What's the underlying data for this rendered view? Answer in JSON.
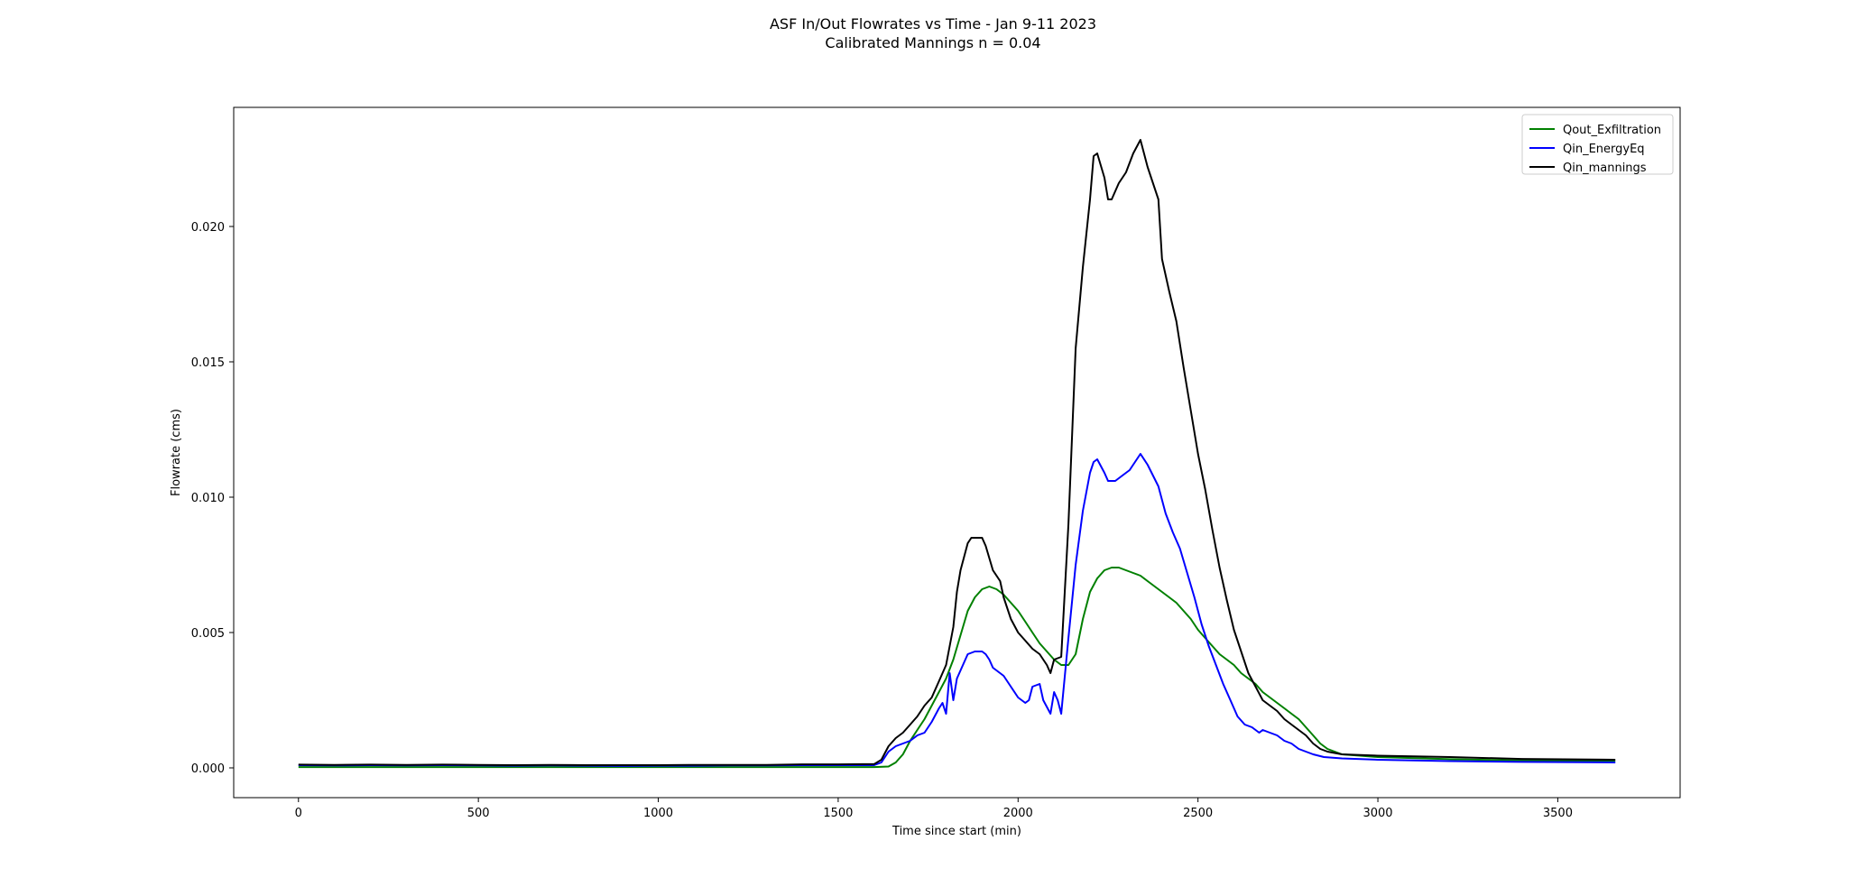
{
  "chart_data": {
    "type": "line",
    "title": "ASF In/Out Flowrates vs Time - Jan 9-11 2023",
    "subtitle": "Calibrated Mannings n = 0.04",
    "xlabel": "Time since start (min)",
    "ylabel": "Flowrate (cms)",
    "xlim": [
      -180,
      3840
    ],
    "ylim": [
      -0.0011,
      0.0244
    ],
    "xticks": [
      0,
      500,
      1000,
      1500,
      2000,
      2500,
      3000,
      3500
    ],
    "xtick_labels": [
      "0",
      "500",
      "1000",
      "1500",
      "2000",
      "2500",
      "3000",
      "3500"
    ],
    "yticks": [
      0.0,
      0.005,
      0.01,
      0.015,
      0.02
    ],
    "ytick_labels": [
      "0.000",
      "0.005",
      "0.010",
      "0.015",
      "0.020"
    ],
    "grid": false,
    "legend_position": "top-right",
    "series": [
      {
        "name": "Qout_Exfiltration",
        "color": "#008000",
        "points": [
          [
            0,
            3e-05
          ],
          [
            500,
            3e-05
          ],
          [
            1000,
            3e-05
          ],
          [
            1500,
            3e-05
          ],
          [
            1600,
            3e-05
          ],
          [
            1640,
            5e-05
          ],
          [
            1660,
            0.0002
          ],
          [
            1680,
            0.0005
          ],
          [
            1700,
            0.001
          ],
          [
            1720,
            0.0014
          ],
          [
            1740,
            0.0018
          ],
          [
            1760,
            0.0023
          ],
          [
            1780,
            0.0028
          ],
          [
            1800,
            0.0033
          ],
          [
            1820,
            0.004
          ],
          [
            1840,
            0.0049
          ],
          [
            1860,
            0.0058
          ],
          [
            1880,
            0.0063
          ],
          [
            1900,
            0.0066
          ],
          [
            1920,
            0.0067
          ],
          [
            1940,
            0.0066
          ],
          [
            1960,
            0.0064
          ],
          [
            1980,
            0.0061
          ],
          [
            2000,
            0.0058
          ],
          [
            2020,
            0.0054
          ],
          [
            2040,
            0.005
          ],
          [
            2060,
            0.0046
          ],
          [
            2080,
            0.0043
          ],
          [
            2100,
            0.004
          ],
          [
            2120,
            0.0038
          ],
          [
            2140,
            0.0038
          ],
          [
            2160,
            0.0042
          ],
          [
            2180,
            0.0055
          ],
          [
            2200,
            0.0065
          ],
          [
            2220,
            0.007
          ],
          [
            2240,
            0.0073
          ],
          [
            2260,
            0.0074
          ],
          [
            2280,
            0.0074
          ],
          [
            2300,
            0.0073
          ],
          [
            2320,
            0.0072
          ],
          [
            2340,
            0.0071
          ],
          [
            2360,
            0.0069
          ],
          [
            2380,
            0.0067
          ],
          [
            2400,
            0.0065
          ],
          [
            2420,
            0.0063
          ],
          [
            2440,
            0.0061
          ],
          [
            2460,
            0.0058
          ],
          [
            2480,
            0.0055
          ],
          [
            2500,
            0.0051
          ],
          [
            2520,
            0.0048
          ],
          [
            2540,
            0.0045
          ],
          [
            2560,
            0.0042
          ],
          [
            2580,
            0.004
          ],
          [
            2600,
            0.0038
          ],
          [
            2620,
            0.0035
          ],
          [
            2640,
            0.0033
          ],
          [
            2660,
            0.0031
          ],
          [
            2680,
            0.0028
          ],
          [
            2700,
            0.0026
          ],
          [
            2720,
            0.0024
          ],
          [
            2740,
            0.0022
          ],
          [
            2760,
            0.002
          ],
          [
            2780,
            0.0018
          ],
          [
            2800,
            0.0015
          ],
          [
            2820,
            0.0012
          ],
          [
            2840,
            0.0009
          ],
          [
            2860,
            0.0007
          ],
          [
            2880,
            0.0006
          ],
          [
            2900,
            0.0005
          ],
          [
            2950,
            0.00045
          ],
          [
            3000,
            0.0004
          ],
          [
            3200,
            0.00032
          ],
          [
            3400,
            0.00027
          ],
          [
            3660,
            0.00025
          ]
        ]
      },
      {
        "name": "Qin_EnergyEq",
        "color": "#0000ff",
        "points": [
          [
            0,
            0.0001
          ],
          [
            100,
            9e-05
          ],
          [
            200,
            0.0001
          ],
          [
            300,
            9e-05
          ],
          [
            400,
            0.0001
          ],
          [
            500,
            9e-05
          ],
          [
            600,
            8e-05
          ],
          [
            700,
            9e-05
          ],
          [
            800,
            8e-05
          ],
          [
            900,
            7e-05
          ],
          [
            1000,
            8e-05
          ],
          [
            1100,
            8e-05
          ],
          [
            1200,
            9e-05
          ],
          [
            1300,
            9e-05
          ],
          [
            1400,
            0.0001
          ],
          [
            1500,
            0.0001
          ],
          [
            1600,
            0.0001
          ],
          [
            1620,
            0.0002
          ],
          [
            1640,
            0.0006
          ],
          [
            1660,
            0.0008
          ],
          [
            1680,
            0.0009
          ],
          [
            1700,
            0.001
          ],
          [
            1720,
            0.0012
          ],
          [
            1740,
            0.0013
          ],
          [
            1760,
            0.0017
          ],
          [
            1780,
            0.0022
          ],
          [
            1790,
            0.0024
          ],
          [
            1800,
            0.002
          ],
          [
            1810,
            0.0035
          ],
          [
            1820,
            0.0025
          ],
          [
            1830,
            0.0033
          ],
          [
            1840,
            0.0036
          ],
          [
            1860,
            0.0042
          ],
          [
            1880,
            0.0043
          ],
          [
            1900,
            0.0043
          ],
          [
            1910,
            0.0042
          ],
          [
            1920,
            0.004
          ],
          [
            1930,
            0.0037
          ],
          [
            1940,
            0.0036
          ],
          [
            1960,
            0.0034
          ],
          [
            1980,
            0.003
          ],
          [
            2000,
            0.0026
          ],
          [
            2020,
            0.0024
          ],
          [
            2030,
            0.0025
          ],
          [
            2040,
            0.003
          ],
          [
            2060,
            0.0031
          ],
          [
            2070,
            0.0025
          ],
          [
            2090,
            0.002
          ],
          [
            2100,
            0.0028
          ],
          [
            2110,
            0.0025
          ],
          [
            2120,
            0.002
          ],
          [
            2140,
            0.0048
          ],
          [
            2160,
            0.0075
          ],
          [
            2180,
            0.0095
          ],
          [
            2200,
            0.0109
          ],
          [
            2210,
            0.0113
          ],
          [
            2220,
            0.0114
          ],
          [
            2240,
            0.0109
          ],
          [
            2250,
            0.0106
          ],
          [
            2270,
            0.0106
          ],
          [
            2290,
            0.0108
          ],
          [
            2310,
            0.011
          ],
          [
            2330,
            0.0114
          ],
          [
            2340,
            0.0116
          ],
          [
            2360,
            0.0112
          ],
          [
            2390,
            0.0104
          ],
          [
            2410,
            0.0094
          ],
          [
            2430,
            0.0087
          ],
          [
            2450,
            0.0081
          ],
          [
            2470,
            0.0072
          ],
          [
            2490,
            0.0063
          ],
          [
            2510,
            0.0053
          ],
          [
            2530,
            0.0045
          ],
          [
            2550,
            0.0038
          ],
          [
            2570,
            0.0031
          ],
          [
            2590,
            0.0025
          ],
          [
            2610,
            0.0019
          ],
          [
            2630,
            0.0016
          ],
          [
            2650,
            0.0015
          ],
          [
            2670,
            0.0013
          ],
          [
            2680,
            0.0014
          ],
          [
            2700,
            0.0013
          ],
          [
            2720,
            0.0012
          ],
          [
            2740,
            0.001
          ],
          [
            2760,
            0.0009
          ],
          [
            2780,
            0.0007
          ],
          [
            2800,
            0.0006
          ],
          [
            2820,
            0.0005
          ],
          [
            2850,
            0.0004
          ],
          [
            2900,
            0.00035
          ],
          [
            3000,
            0.0003
          ],
          [
            3200,
            0.00025
          ],
          [
            3400,
            0.00022
          ],
          [
            3660,
            0.0002
          ]
        ]
      },
      {
        "name": "Qin_mannings",
        "color": "#000000",
        "points": [
          [
            0,
            0.00012
          ],
          [
            100,
            0.00011
          ],
          [
            200,
            0.00012
          ],
          [
            300,
            0.00011
          ],
          [
            400,
            0.00012
          ],
          [
            500,
            0.00011
          ],
          [
            600,
            0.0001
          ],
          [
            700,
            0.00011
          ],
          [
            800,
            0.0001
          ],
          [
            900,
            0.0001
          ],
          [
            1000,
            0.0001
          ],
          [
            1100,
            0.00011
          ],
          [
            1200,
            0.00011
          ],
          [
            1300,
            0.00011
          ],
          [
            1400,
            0.00013
          ],
          [
            1500,
            0.00013
          ],
          [
            1600,
            0.00014
          ],
          [
            1620,
            0.0003
          ],
          [
            1640,
            0.0008
          ],
          [
            1660,
            0.0011
          ],
          [
            1680,
            0.0013
          ],
          [
            1700,
            0.0016
          ],
          [
            1720,
            0.0019
          ],
          [
            1740,
            0.0023
          ],
          [
            1760,
            0.0026
          ],
          [
            1780,
            0.0032
          ],
          [
            1800,
            0.0038
          ],
          [
            1810,
            0.0045
          ],
          [
            1820,
            0.0052
          ],
          [
            1830,
            0.0065
          ],
          [
            1840,
            0.0073
          ],
          [
            1860,
            0.0083
          ],
          [
            1870,
            0.0085
          ],
          [
            1890,
            0.0085
          ],
          [
            1900,
            0.0085
          ],
          [
            1910,
            0.0082
          ],
          [
            1930,
            0.0073
          ],
          [
            1950,
            0.0069
          ],
          [
            1960,
            0.0063
          ],
          [
            1980,
            0.0055
          ],
          [
            2000,
            0.005
          ],
          [
            2020,
            0.0047
          ],
          [
            2040,
            0.0044
          ],
          [
            2060,
            0.0042
          ],
          [
            2080,
            0.0038
          ],
          [
            2090,
            0.0035
          ],
          [
            2100,
            0.004
          ],
          [
            2120,
            0.0041
          ],
          [
            2140,
            0.009
          ],
          [
            2160,
            0.0155
          ],
          [
            2180,
            0.0185
          ],
          [
            2200,
            0.021
          ],
          [
            2210,
            0.0226
          ],
          [
            2220,
            0.0227
          ],
          [
            2240,
            0.0218
          ],
          [
            2250,
            0.021
          ],
          [
            2260,
            0.021
          ],
          [
            2280,
            0.0216
          ],
          [
            2300,
            0.022
          ],
          [
            2320,
            0.0227
          ],
          [
            2340,
            0.0232
          ],
          [
            2360,
            0.0222
          ],
          [
            2390,
            0.021
          ],
          [
            2400,
            0.0188
          ],
          [
            2420,
            0.0176
          ],
          [
            2440,
            0.0165
          ],
          [
            2460,
            0.0148
          ],
          [
            2480,
            0.0132
          ],
          [
            2500,
            0.0116
          ],
          [
            2520,
            0.0103
          ],
          [
            2540,
            0.0088
          ],
          [
            2560,
            0.0074
          ],
          [
            2580,
            0.0062
          ],
          [
            2600,
            0.0051
          ],
          [
            2620,
            0.0043
          ],
          [
            2640,
            0.0035
          ],
          [
            2660,
            0.003
          ],
          [
            2680,
            0.0025
          ],
          [
            2700,
            0.0023
          ],
          [
            2720,
            0.0021
          ],
          [
            2740,
            0.0018
          ],
          [
            2760,
            0.0016
          ],
          [
            2780,
            0.0014
          ],
          [
            2800,
            0.0012
          ],
          [
            2820,
            0.0009
          ],
          [
            2840,
            0.0007
          ],
          [
            2860,
            0.0006
          ],
          [
            2900,
            0.0005
          ],
          [
            3000,
            0.00045
          ],
          [
            3200,
            0.0004
          ],
          [
            3400,
            0.00033
          ],
          [
            3660,
            0.0003
          ]
        ]
      }
    ]
  }
}
